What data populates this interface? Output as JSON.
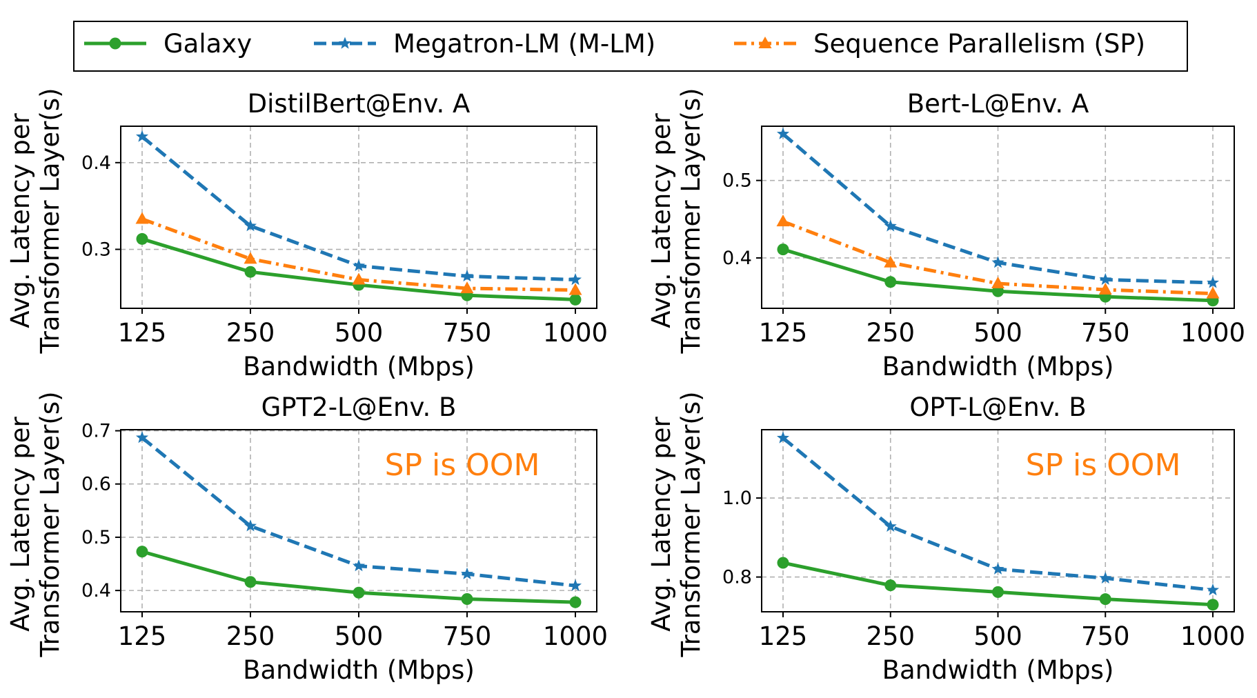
{
  "legend": {
    "items": [
      {
        "label": "Galaxy",
        "color": "#2ca02c",
        "marker": "circle",
        "dash": "solid"
      },
      {
        "label": "Megatron-LM (M-LM)",
        "color": "#1f77b4",
        "marker": "star",
        "dash": "dashed"
      },
      {
        "label": "Sequence Parallelism (SP)",
        "color": "#ff7f0e",
        "marker": "triangle",
        "dash": "dashdot"
      }
    ]
  },
  "chart_data": [
    {
      "type": "line",
      "title": "DistilBert@Env. A",
      "xlabel": "Bandwidth (Mbps)",
      "ylabel": [
        "Avg. Latency per",
        "Transformer Layer(s)"
      ],
      "categories": [
        "125",
        "250",
        "500",
        "750",
        "1000"
      ],
      "ylim": [
        0.232,
        0.442
      ],
      "yticks": [
        0.3,
        0.4
      ],
      "grid": true,
      "annotation": "",
      "series": [
        {
          "name": "Galaxy",
          "values": [
            0.312,
            0.274,
            0.259,
            0.247,
            0.242
          ]
        },
        {
          "name": "Megatron-LM (M-LM)",
          "values": [
            0.43,
            0.327,
            0.281,
            0.269,
            0.265
          ]
        },
        {
          "name": "Sequence Parallelism (SP)",
          "values": [
            0.335,
            0.289,
            0.265,
            0.255,
            0.253
          ]
        }
      ]
    },
    {
      "type": "line",
      "title": "Bert-L@Env. A",
      "xlabel": "Bandwidth (Mbps)",
      "ylabel": [
        "Avg. Latency per",
        "Transformer Layer(s)"
      ],
      "categories": [
        "125",
        "250",
        "500",
        "750",
        "1000"
      ],
      "ylim": [
        0.335,
        0.57
      ],
      "yticks": [
        0.4,
        0.5
      ],
      "grid": true,
      "annotation": "",
      "series": [
        {
          "name": "Galaxy",
          "values": [
            0.411,
            0.369,
            0.357,
            0.35,
            0.345
          ]
        },
        {
          "name": "Megatron-LM (M-LM)",
          "values": [
            0.56,
            0.441,
            0.394,
            0.372,
            0.368
          ]
        },
        {
          "name": "Sequence Parallelism (SP)",
          "values": [
            0.447,
            0.394,
            0.367,
            0.359,
            0.354
          ]
        }
      ]
    },
    {
      "type": "line",
      "title": "GPT2-L@Env. B",
      "xlabel": "Bandwidth (Mbps)",
      "ylabel": [
        "Avg. Latency per",
        "Transformer Layer(s)"
      ],
      "categories": [
        "125",
        "250",
        "500",
        "750",
        "1000"
      ],
      "ylim": [
        0.36,
        0.702
      ],
      "yticks": [
        0.4,
        0.5,
        0.6,
        0.7
      ],
      "grid": true,
      "annotation": "SP is OOM",
      "series": [
        {
          "name": "Galaxy",
          "values": [
            0.473,
            0.416,
            0.396,
            0.384,
            0.378
          ]
        },
        {
          "name": "Megatron-LM (M-LM)",
          "values": [
            0.687,
            0.521,
            0.446,
            0.431,
            0.409
          ]
        }
      ]
    },
    {
      "type": "line",
      "title": "OPT-L@Env. B",
      "xlabel": "Bandwidth (Mbps)",
      "ylabel": [
        "Avg. Latency per",
        "Transformer Layer(s)"
      ],
      "categories": [
        "125",
        "250",
        "500",
        "750",
        "1000"
      ],
      "ylim": [
        0.712,
        1.173
      ],
      "yticks": [
        0.8,
        1.0
      ],
      "grid": true,
      "annotation": "SP is OOM",
      "series": [
        {
          "name": "Galaxy",
          "values": [
            0.836,
            0.779,
            0.762,
            0.744,
            0.73
          ]
        },
        {
          "name": "Megatron-LM (M-LM)",
          "values": [
            1.152,
            0.928,
            0.82,
            0.797,
            0.767
          ]
        }
      ]
    }
  ]
}
